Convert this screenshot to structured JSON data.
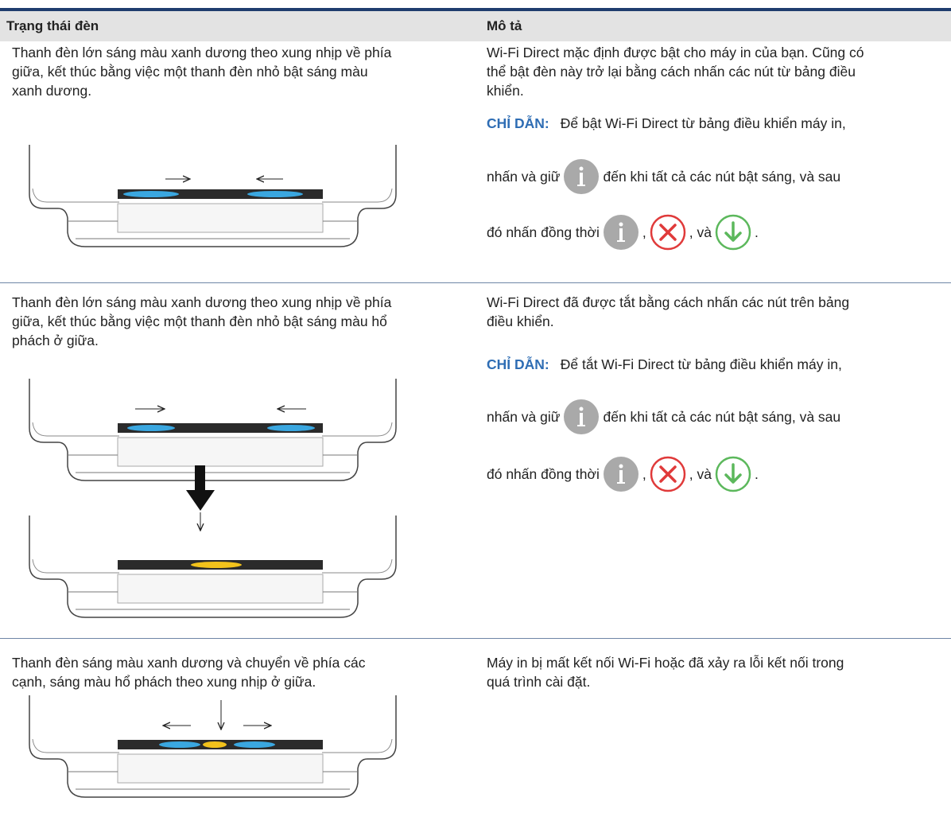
{
  "table": {
    "header": [
      "Trạng thái đèn",
      "Mô tả"
    ],
    "rows": [
      {
        "status": [
          "Thanh đèn lớn sáng màu xanh dương theo xung nhịp về phía",
          "giữa, kết thúc bằng việc một thanh đèn nhỏ bật sáng màu",
          "xanh dương."
        ],
        "description": [
          "Wi-Fi Direct mặc định được bật cho máy in của bạn. Cũng có",
          "thể bật đèn này trở lại bằng cách nhấn các nút từ bảng điều",
          "khiển."
        ],
        "note": {
          "label": "CHỈ DẪN:",
          "line1": "Để bật Wi-Fi Direct từ bảng điều khiển máy in,",
          "hold": "nhấn và giữ",
          "until": "đến khi tất cả các nút bật sáng, và sau",
          "press": "đó nhấn đồng thời",
          "sep": ",",
          "and": ", và",
          "end": "."
        }
      },
      {
        "status": [
          "Thanh đèn lớn sáng màu xanh dương theo xung nhịp về phía",
          "giữa, kết thúc bằng việc một thanh đèn nhỏ bật sáng màu hổ",
          "phách ở giữa."
        ],
        "description": [
          "Wi-Fi Direct đã được tắt bằng cách nhấn các nút trên bảng",
          "điều khiển."
        ],
        "note": {
          "label": "CHỈ DẪN:",
          "line1": "Để tắt Wi-Fi Direct từ bảng điều khiển máy in,",
          "hold": "nhấn và giữ",
          "until": "đến khi tất cả các nút bật sáng, và sau",
          "press": "đó nhấn đồng thời",
          "sep": ",",
          "and": ", và",
          "end": "."
        }
      },
      {
        "status": [
          "Thanh đèn sáng màu xanh dương và chuyển về phía các",
          "cạnh, sáng màu hổ phách theo xung nhịp ở giữa."
        ],
        "description": [
          "Máy in bị mất kết nối Wi-Fi hoặc đã xảy ra lỗi kết nối trong",
          "quá trình cài đặt."
        ]
      }
    ]
  }
}
